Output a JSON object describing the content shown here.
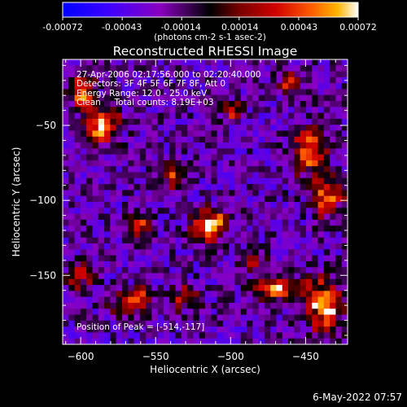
{
  "colorbar": {
    "tick_labels": [
      "-0.00072",
      "-0.00043",
      "-0.00014",
      "0.00014",
      "0.00043",
      "0.00072"
    ],
    "range": [
      -0.00072,
      0.00072
    ],
    "units_label": "(photons cm-2 s-1 asec-2)",
    "colors": [
      "#0000ff",
      "#3a00ff",
      "#8a00c0",
      "#000000",
      "#7a0000",
      "#d00000",
      "#ff5a00",
      "#ffb400",
      "#ffffff"
    ]
  },
  "chart_data": {
    "type": "heatmap",
    "title": "Reconstructed RHESSI Image",
    "xlabel": "Heliocentric X (arcsec)",
    "ylabel": "Heliocentric Y (arcsec)",
    "xlim": [
      -612,
      -422
    ],
    "ylim": [
      -196,
      -6
    ],
    "xticks": [
      -600,
      -550,
      -500,
      -450
    ],
    "yticks": [
      -50,
      -100,
      -150
    ],
    "grid": false,
    "sources": [
      {
        "x": -514,
        "y": -117,
        "sx": 8,
        "sy": 7,
        "amp": 1.0
      },
      {
        "x": -585,
        "y": -50,
        "sx": 9,
        "sy": 7,
        "amp": 0.8
      },
      {
        "x": -598,
        "y": -28,
        "sx": 7,
        "sy": 8,
        "amp": 0.65
      },
      {
        "x": -448,
        "y": -68,
        "sx": 8,
        "sy": 13,
        "amp": 0.75
      },
      {
        "x": -435,
        "y": -100,
        "sx": 7,
        "sy": 10,
        "amp": 0.6
      },
      {
        "x": -437,
        "y": -170,
        "sx": 10,
        "sy": 12,
        "amp": 0.9
      },
      {
        "x": -470,
        "y": -160,
        "sx": 10,
        "sy": 6,
        "amp": 0.75
      },
      {
        "x": -600,
        "y": -150,
        "sx": 6,
        "sy": 6,
        "amp": 0.65
      },
      {
        "x": -565,
        "y": -168,
        "sx": 10,
        "sy": 6,
        "amp": 0.7
      },
      {
        "x": -530,
        "y": -165,
        "sx": 7,
        "sy": 6,
        "amp": 0.55
      },
      {
        "x": -540,
        "y": -85,
        "sx": 6,
        "sy": 6,
        "amp": 0.55
      },
      {
        "x": -560,
        "y": -118,
        "sx": 6,
        "sy": 6,
        "amp": 0.5
      },
      {
        "x": -500,
        "y": -40,
        "sx": 5,
        "sy": 5,
        "amp": 0.5
      },
      {
        "x": -460,
        "y": -20,
        "sx": 6,
        "sy": 5,
        "amp": 0.55
      },
      {
        "x": -485,
        "y": -140,
        "sx": 6,
        "sy": 5,
        "amp": 0.45
      }
    ],
    "info": {
      "time_range": "27-Apr-2006 02:17:56.000 to 02:20:40.000",
      "detectors": "Detectors: 3F 4F 5F 6F 7F 8F, Att 0",
      "energy_range": "Energy Range: 12.0 - 25.0 keV",
      "clean": "Clean",
      "total_counts": "Total counts: 8.19E+03",
      "peak_position": "Position of Peak = [-514,-117]"
    }
  },
  "footer": {
    "date": "6-May-2022 07:57"
  }
}
